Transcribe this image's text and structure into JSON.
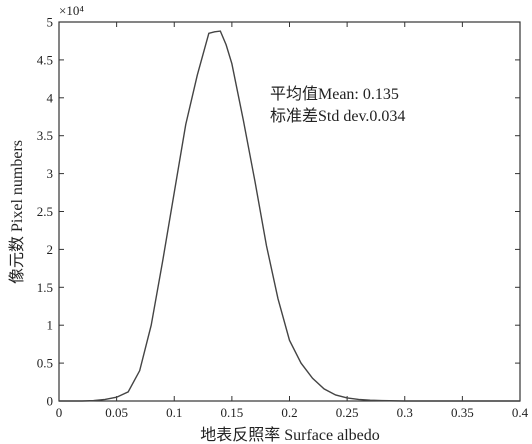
{
  "chart_data": {
    "type": "line",
    "title": "",
    "xlabel": "地表反照率 Surface albedo",
    "ylabel": "像元数 Pixel numbers",
    "xlim": [
      0,
      0.4
    ],
    "ylim": [
      0,
      5
    ],
    "y_multiplier_label": "×10⁴",
    "x_ticks": [
      "0",
      "0.05",
      "0.1",
      "0.15",
      "0.2",
      "0.25",
      "0.3",
      "0.35",
      "0.4"
    ],
    "y_ticks": [
      "0",
      "0.5",
      "1",
      "1.5",
      "2",
      "2.5",
      "3",
      "3.5",
      "4",
      "4.5",
      "5"
    ],
    "grid": false,
    "annotations": [
      "平均值Mean: 0.135",
      "标准差Std dev.0.034"
    ],
    "series": [
      {
        "x": [
          0.0,
          0.02,
          0.03,
          0.04,
          0.05,
          0.06,
          0.07,
          0.08,
          0.09,
          0.1,
          0.11,
          0.12,
          0.13,
          0.135,
          0.14,
          0.145,
          0.15,
          0.16,
          0.17,
          0.18,
          0.19,
          0.2,
          0.21,
          0.22,
          0.23,
          0.24,
          0.25,
          0.26,
          0.27,
          0.28,
          0.3,
          0.4
        ],
        "values": [
          0.0,
          0.0,
          0.005,
          0.02,
          0.05,
          0.12,
          0.4,
          1.0,
          1.85,
          2.75,
          3.65,
          4.3,
          4.85,
          4.87,
          4.88,
          4.7,
          4.45,
          3.7,
          2.9,
          2.05,
          1.35,
          0.8,
          0.5,
          0.3,
          0.16,
          0.08,
          0.04,
          0.02,
          0.01,
          0.005,
          0.0,
          0.0
        ]
      }
    ]
  }
}
